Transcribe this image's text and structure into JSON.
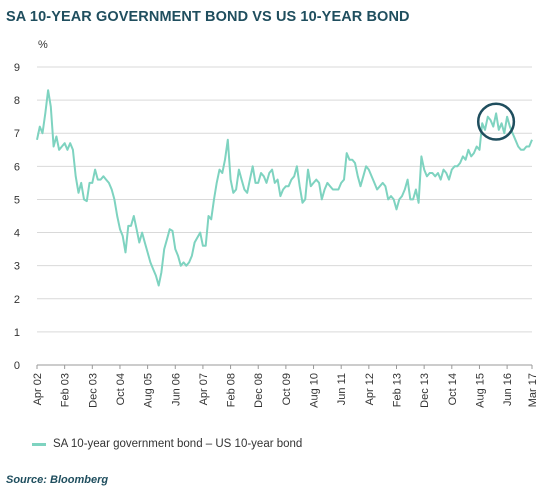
{
  "title": "SA 10-YEAR GOVERNMENT BOND VS US 10-YEAR BOND",
  "source": "Source: Bloomberg",
  "colors": {
    "line": "#7ed3c0",
    "title": "#1f4e5e",
    "grid": "#d9d9d9",
    "highlight": "#1f4e5e"
  },
  "chart_data": {
    "type": "line",
    "ylabel": "%",
    "ylim": [
      0,
      9
    ],
    "yticks": [
      0,
      1,
      2,
      3,
      4,
      5,
      6,
      7,
      8,
      9
    ],
    "grid": "horizontal",
    "legend_position": "bottom-left",
    "xlim": [
      "2002-04",
      "2017-03"
    ],
    "xticks": [
      {
        "date": "2002-04",
        "label": "Apr 02"
      },
      {
        "date": "2003-02",
        "label": "Feb 03"
      },
      {
        "date": "2003-12",
        "label": "Dec 03"
      },
      {
        "date": "2004-10",
        "label": "Oct 04"
      },
      {
        "date": "2005-08",
        "label": "Aug 05"
      },
      {
        "date": "2006-06",
        "label": "Jun 06"
      },
      {
        "date": "2007-04",
        "label": "Apr 07"
      },
      {
        "date": "2008-02",
        "label": "Feb 08"
      },
      {
        "date": "2008-12",
        "label": "Dec 08"
      },
      {
        "date": "2009-10",
        "label": "Oct 09"
      },
      {
        "date": "2010-08",
        "label": "Aug 10"
      },
      {
        "date": "2011-06",
        "label": "Jun 11"
      },
      {
        "date": "2012-04",
        "label": "Apr 12"
      },
      {
        "date": "2013-02",
        "label": "Feb 13"
      },
      {
        "date": "2013-12",
        "label": "Dec 13"
      },
      {
        "date": "2014-10",
        "label": "Oct 14"
      },
      {
        "date": "2015-08",
        "label": "Aug 15"
      },
      {
        "date": "2016-06",
        "label": "Jun 16"
      },
      {
        "date": "2017-03",
        "label": "Mar 17"
      }
    ],
    "series": [
      {
        "name": "SA 10-year government bond – US 10-year bond",
        "points": [
          [
            "2002-04",
            6.8
          ],
          [
            "2002-05",
            7.2
          ],
          [
            "2002-06",
            7.0
          ],
          [
            "2002-07",
            7.6
          ],
          [
            "2002-08",
            8.3
          ],
          [
            "2002-09",
            7.8
          ],
          [
            "2002-10",
            6.6
          ],
          [
            "2002-11",
            6.9
          ],
          [
            "2002-12",
            6.5
          ],
          [
            "2003-01",
            6.6
          ],
          [
            "2003-02",
            6.7
          ],
          [
            "2003-03",
            6.5
          ],
          [
            "2003-04",
            6.7
          ],
          [
            "2003-05",
            6.5
          ],
          [
            "2003-06",
            5.7
          ],
          [
            "2003-07",
            5.2
          ],
          [
            "2003-08",
            5.5
          ],
          [
            "2003-09",
            5.0
          ],
          [
            "2003-10",
            4.95
          ],
          [
            "2003-11",
            5.5
          ],
          [
            "2003-12",
            5.5
          ],
          [
            "2004-01",
            5.9
          ],
          [
            "2004-02",
            5.6
          ],
          [
            "2004-03",
            5.6
          ],
          [
            "2004-04",
            5.7
          ],
          [
            "2004-05",
            5.6
          ],
          [
            "2004-06",
            5.5
          ],
          [
            "2004-07",
            5.3
          ],
          [
            "2004-08",
            5.0
          ],
          [
            "2004-09",
            4.5
          ],
          [
            "2004-10",
            4.1
          ],
          [
            "2004-11",
            3.9
          ],
          [
            "2004-12",
            3.4
          ],
          [
            "2005-01",
            4.2
          ],
          [
            "2005-02",
            4.2
          ],
          [
            "2005-03",
            4.5
          ],
          [
            "2005-04",
            4.1
          ],
          [
            "2005-05",
            3.7
          ],
          [
            "2005-06",
            4.0
          ],
          [
            "2005-07",
            3.7
          ],
          [
            "2005-08",
            3.4
          ],
          [
            "2005-09",
            3.1
          ],
          [
            "2005-10",
            2.9
          ],
          [
            "2005-11",
            2.7
          ],
          [
            "2005-12",
            2.4
          ],
          [
            "2006-01",
            2.8
          ],
          [
            "2006-02",
            3.5
          ],
          [
            "2006-03",
            3.8
          ],
          [
            "2006-04",
            4.1
          ],
          [
            "2006-05",
            4.05
          ],
          [
            "2006-06",
            3.5
          ],
          [
            "2006-07",
            3.3
          ],
          [
            "2006-08",
            3.0
          ],
          [
            "2006-09",
            3.1
          ],
          [
            "2006-10",
            3.0
          ],
          [
            "2006-11",
            3.1
          ],
          [
            "2006-12",
            3.3
          ],
          [
            "2007-01",
            3.7
          ],
          [
            "2007-02",
            3.85
          ],
          [
            "2007-03",
            4.0
          ],
          [
            "2007-04",
            3.6
          ],
          [
            "2007-05",
            3.6
          ],
          [
            "2007-06",
            4.5
          ],
          [
            "2007-07",
            4.4
          ],
          [
            "2007-08",
            5.0
          ],
          [
            "2007-09",
            5.5
          ],
          [
            "2007-10",
            5.9
          ],
          [
            "2007-11",
            5.8
          ],
          [
            "2007-12",
            6.2
          ],
          [
            "2008-01",
            6.8
          ],
          [
            "2008-02",
            5.6
          ],
          [
            "2008-03",
            5.2
          ],
          [
            "2008-04",
            5.3
          ],
          [
            "2008-05",
            5.9
          ],
          [
            "2008-06",
            5.6
          ],
          [
            "2008-07",
            5.3
          ],
          [
            "2008-08",
            5.2
          ],
          [
            "2008-09",
            5.6
          ],
          [
            "2008-10",
            6.0
          ],
          [
            "2008-11",
            5.5
          ],
          [
            "2008-12",
            5.5
          ],
          [
            "2009-01",
            5.8
          ],
          [
            "2009-02",
            5.7
          ],
          [
            "2009-03",
            5.5
          ],
          [
            "2009-04",
            5.8
          ],
          [
            "2009-05",
            5.9
          ],
          [
            "2009-06",
            5.5
          ],
          [
            "2009-07",
            5.6
          ],
          [
            "2009-08",
            5.1
          ],
          [
            "2009-09",
            5.3
          ],
          [
            "2009-10",
            5.4
          ],
          [
            "2009-11",
            5.4
          ],
          [
            "2009-12",
            5.6
          ],
          [
            "2010-01",
            5.7
          ],
          [
            "2010-02",
            6.0
          ],
          [
            "2010-03",
            5.4
          ],
          [
            "2010-04",
            4.9
          ],
          [
            "2010-05",
            5.0
          ],
          [
            "2010-06",
            5.9
          ],
          [
            "2010-07",
            5.4
          ],
          [
            "2010-08",
            5.5
          ],
          [
            "2010-09",
            5.6
          ],
          [
            "2010-10",
            5.5
          ],
          [
            "2010-11",
            5.0
          ],
          [
            "2010-12",
            5.3
          ],
          [
            "2011-01",
            5.5
          ],
          [
            "2011-02",
            5.4
          ],
          [
            "2011-03",
            5.3
          ],
          [
            "2011-04",
            5.3
          ],
          [
            "2011-05",
            5.3
          ],
          [
            "2011-06",
            5.5
          ],
          [
            "2011-07",
            5.6
          ],
          [
            "2011-08",
            6.4
          ],
          [
            "2011-09",
            6.2
          ],
          [
            "2011-10",
            6.2
          ],
          [
            "2011-11",
            6.1
          ],
          [
            "2011-12",
            5.7
          ],
          [
            "2012-01",
            5.4
          ],
          [
            "2012-02",
            5.7
          ],
          [
            "2012-03",
            6.0
          ],
          [
            "2012-04",
            5.9
          ],
          [
            "2012-05",
            5.7
          ],
          [
            "2012-06",
            5.5
          ],
          [
            "2012-07",
            5.3
          ],
          [
            "2012-08",
            5.4
          ],
          [
            "2012-09",
            5.5
          ],
          [
            "2012-10",
            5.4
          ],
          [
            "2012-11",
            5.0
          ],
          [
            "2012-12",
            5.1
          ],
          [
            "2013-01",
            5.0
          ],
          [
            "2013-02",
            4.7
          ],
          [
            "2013-03",
            5.0
          ],
          [
            "2013-04",
            5.1
          ],
          [
            "2013-05",
            5.3
          ],
          [
            "2013-06",
            5.6
          ],
          [
            "2013-07",
            5.0
          ],
          [
            "2013-08",
            5.0
          ],
          [
            "2013-09",
            5.3
          ],
          [
            "2013-10",
            4.9
          ],
          [
            "2013-11",
            6.3
          ],
          [
            "2013-12",
            5.9
          ],
          [
            "2014-01",
            5.7
          ],
          [
            "2014-02",
            5.8
          ],
          [
            "2014-03",
            5.8
          ],
          [
            "2014-04",
            5.7
          ],
          [
            "2014-05",
            5.8
          ],
          [
            "2014-06",
            5.6
          ],
          [
            "2014-07",
            5.9
          ],
          [
            "2014-08",
            5.8
          ],
          [
            "2014-09",
            5.6
          ],
          [
            "2014-10",
            5.9
          ],
          [
            "2014-11",
            6.0
          ],
          [
            "2014-12",
            6.0
          ],
          [
            "2015-01",
            6.1
          ],
          [
            "2015-02",
            6.3
          ],
          [
            "2015-03",
            6.2
          ],
          [
            "2015-04",
            6.5
          ],
          [
            "2015-05",
            6.3
          ],
          [
            "2015-06",
            6.4
          ],
          [
            "2015-07",
            6.6
          ],
          [
            "2015-08",
            6.5
          ],
          [
            "2015-09",
            7.3
          ],
          [
            "2015-10",
            7.1
          ],
          [
            "2015-11",
            7.5
          ],
          [
            "2015-12",
            7.4
          ],
          [
            "2016-01",
            7.2
          ],
          [
            "2016-02",
            7.6
          ],
          [
            "2016-03",
            7.1
          ],
          [
            "2016-04",
            7.3
          ],
          [
            "2016-05",
            7.0
          ],
          [
            "2016-06",
            7.5
          ],
          [
            "2016-07",
            7.2
          ],
          [
            "2016-08",
            7.0
          ],
          [
            "2016-09",
            6.8
          ],
          [
            "2016-10",
            6.6
          ],
          [
            "2016-11",
            6.5
          ],
          [
            "2016-12",
            6.5
          ],
          [
            "2017-01",
            6.6
          ],
          [
            "2017-02",
            6.6
          ],
          [
            "2017-03",
            6.8
          ]
        ]
      }
    ],
    "annotations": [
      {
        "type": "circle",
        "x_range": [
          "2015-09",
          "2016-07"
        ],
        "y_range": [
          6.9,
          7.8
        ]
      }
    ]
  }
}
